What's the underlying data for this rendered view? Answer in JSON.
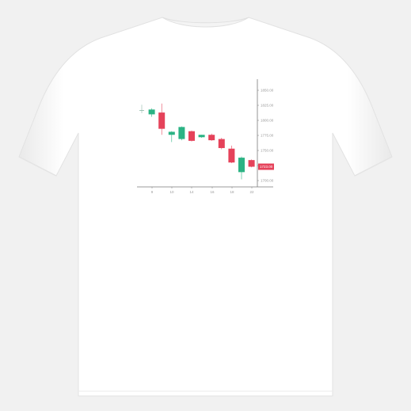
{
  "colors": {
    "background": "#f1f1f1",
    "shirt": "#ffffff",
    "bullish": "#2bb384",
    "bearish": "#e5425a",
    "axis": "#7a7a7a",
    "label": "#9a9a9a"
  },
  "chart_data": {
    "type": "candlestick",
    "x_ticks": [
      "9",
      "10",
      "14",
      "16",
      "18",
      "22"
    ],
    "y_ticks": [
      "1850.00",
      "1825.00",
      "1800.00",
      "1775.00",
      "1750.00",
      "1725.00",
      "1700.00"
    ],
    "current_price": "1723.00",
    "ylim": [
      1690,
      1860
    ],
    "candles": [
      {
        "open": 1817,
        "close": 1817,
        "high": 1826,
        "low": 1812,
        "direction": "neutral"
      },
      {
        "open": 1810,
        "close": 1818,
        "high": 1820,
        "low": 1806,
        "direction": "up"
      },
      {
        "open": 1813,
        "close": 1786,
        "high": 1828,
        "low": 1776,
        "direction": "down"
      },
      {
        "open": 1776,
        "close": 1781,
        "high": 1782,
        "low": 1764,
        "direction": "up"
      },
      {
        "open": 1769,
        "close": 1789,
        "high": 1790,
        "low": 1767,
        "direction": "up"
      },
      {
        "open": 1782,
        "close": 1766,
        "high": 1783,
        "low": 1765,
        "direction": "down"
      },
      {
        "open": 1772,
        "close": 1776,
        "high": 1776,
        "low": 1771,
        "direction": "up"
      },
      {
        "open": 1776,
        "close": 1767,
        "high": 1778,
        "low": 1766,
        "direction": "down"
      },
      {
        "open": 1769,
        "close": 1754,
        "high": 1771,
        "low": 1752,
        "direction": "down"
      },
      {
        "open": 1753,
        "close": 1730,
        "high": 1758,
        "low": 1729,
        "direction": "down"
      },
      {
        "open": 1714,
        "close": 1738,
        "high": 1740,
        "low": 1702,
        "direction": "up"
      },
      {
        "open": 1734,
        "close": 1723,
        "high": 1735,
        "low": 1722,
        "direction": "down"
      }
    ],
    "grid": false
  }
}
